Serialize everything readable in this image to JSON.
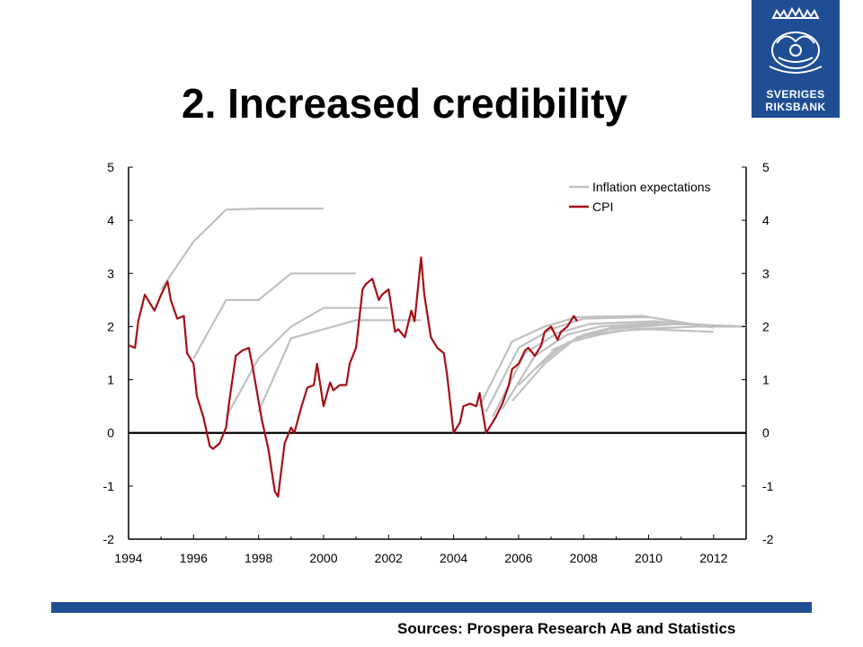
{
  "slide": {
    "title": "2. Increased credibility",
    "source": "Sources: Prospera Research AB and Statistics",
    "logo_line1": "SVERIGES",
    "logo_line2": "RIKSBANK",
    "colors": {
      "brand_blue": "#1f4e95",
      "cpi": "#a50f15",
      "expectations": "#c0c0c0"
    }
  },
  "chart_data": {
    "type": "line",
    "title": "",
    "xlabel": "",
    "ylabel": "",
    "xlim": [
      1994,
      2013
    ],
    "ylim": [
      -2,
      5
    ],
    "x_ticks": [
      "1994",
      "1996",
      "1998",
      "2000",
      "2002",
      "2004",
      "2006",
      "2008",
      "2010",
      "2012"
    ],
    "y_ticks": [
      "5",
      "4",
      "3",
      "2",
      "1",
      "0",
      "-1",
      "-2"
    ],
    "legend": {
      "placement": "top-right",
      "entries": [
        "Inflation expectations",
        "CPI"
      ]
    },
    "cpi": {
      "name": "CPI",
      "x": [
        1994.0,
        1994.2,
        1994.3,
        1994.5,
        1994.6,
        1994.8,
        1995.0,
        1995.2,
        1995.3,
        1995.5,
        1995.7,
        1995.8,
        1996.0,
        1996.1,
        1996.3,
        1996.5,
        1996.6,
        1996.8,
        1997.0,
        1997.1,
        1997.3,
        1997.5,
        1997.7,
        1997.8,
        1998.0,
        1998.1,
        1998.3,
        1998.5,
        1998.6,
        1998.8,
        1999.0,
        1999.1,
        1999.3,
        1999.5,
        1999.7,
        1999.8,
        2000.0,
        2000.2,
        2000.3,
        2000.5,
        2000.7,
        2000.8,
        2001.0,
        2001.2,
        2001.3,
        2001.5,
        2001.7,
        2001.8,
        2002.0,
        2002.2,
        2002.3,
        2002.5,
        2002.7,
        2002.8,
        2003.0,
        2003.1,
        2003.3,
        2003.5,
        2003.7,
        2003.8,
        2004.0,
        2004.2,
        2004.3,
        2004.5,
        2004.7,
        2004.8,
        2005.0,
        2005.2,
        2005.3,
        2005.5,
        2005.7,
        2005.8,
        2006.0,
        2006.2,
        2006.3,
        2006.5,
        2006.7,
        2006.8,
        2007.0,
        2007.2,
        2007.3,
        2007.5,
        2007.7,
        2007.8
      ],
      "values": [
        1.65,
        1.6,
        2.1,
        2.6,
        2.5,
        2.3,
        2.6,
        2.85,
        2.5,
        2.15,
        2.2,
        1.5,
        1.3,
        0.7,
        0.3,
        -0.25,
        -0.3,
        -0.2,
        0.1,
        0.6,
        1.45,
        1.55,
        1.6,
        1.3,
        0.6,
        0.25,
        -0.3,
        -1.1,
        -1.2,
        -0.2,
        0.1,
        0.0,
        0.45,
        0.85,
        0.9,
        1.3,
        0.5,
        0.95,
        0.8,
        0.9,
        0.9,
        1.3,
        1.6,
        2.7,
        2.8,
        2.9,
        2.5,
        2.6,
        2.7,
        1.9,
        1.95,
        1.8,
        2.3,
        2.1,
        3.3,
        2.6,
        1.8,
        1.6,
        1.5,
        1.1,
        0.0,
        0.2,
        0.5,
        0.55,
        0.5,
        0.75,
        0.0,
        0.2,
        0.3,
        0.55,
        0.9,
        1.2,
        1.3,
        1.55,
        1.6,
        1.45,
        1.65,
        1.9,
        2.0,
        1.75,
        1.9,
        2.0,
        2.2,
        2.1
      ]
    },
    "expectations": [
      {
        "x": [
          1995.0,
          1996.0,
          1997.0,
          1998.0,
          2000.0
        ],
        "values": [
          2.7,
          3.6,
          4.2,
          4.22,
          4.22
        ]
      },
      {
        "x": [
          1996.0,
          1997.0,
          1998.0,
          1999.0,
          2001.0
        ],
        "values": [
          1.4,
          2.5,
          2.5,
          3.0,
          3.0
        ]
      },
      {
        "x": [
          1997.0,
          1998.0,
          1999.0,
          2000.0,
          2002.0
        ],
        "values": [
          0.3,
          1.4,
          2.0,
          2.35,
          2.35
        ]
      },
      {
        "x": [
          1998.0,
          1999.0,
          2000.0,
          2001.0,
          2003.0
        ],
        "values": [
          0.4,
          1.78,
          1.95,
          2.12,
          2.12
        ]
      },
      {
        "x": [
          2004.8,
          2005.8,
          2006.8,
          2007.8,
          2009.8,
          2011.8
        ],
        "values": [
          0.5,
          1.72,
          2.0,
          2.18,
          2.2,
          2.0
        ]
      },
      {
        "x": [
          2005.0,
          2006.0,
          2007.0,
          2008.0,
          2010.0,
          2012.0
        ],
        "values": [
          0.4,
          1.6,
          1.95,
          2.15,
          2.18,
          1.98
        ]
      },
      {
        "x": [
          2005.2,
          2006.2,
          2007.2,
          2008.2,
          2010.2,
          2012.2
        ],
        "values": [
          0.3,
          1.5,
          1.88,
          2.05,
          2.1,
          2.0
        ]
      },
      {
        "x": [
          2005.5,
          2006.5,
          2007.5,
          2008.5,
          2010.5,
          2012.5
        ],
        "values": [
          0.45,
          1.45,
          1.85,
          2.0,
          2.08,
          2.0
        ]
      },
      {
        "x": [
          2005.8,
          2006.8,
          2007.8,
          2008.8,
          2010.8,
          2012.8
        ],
        "values": [
          0.6,
          1.3,
          1.8,
          1.95,
          2.05,
          2.0
        ]
      },
      {
        "x": [
          2006.0,
          2007.0,
          2008.0,
          2009.0,
          2011.0,
          2013.0
        ],
        "values": [
          0.9,
          1.5,
          1.85,
          2.0,
          2.05,
          2.0
        ]
      },
      {
        "x": [
          2006.5,
          2007.5,
          2008.5,
          2009.5,
          2011.5,
          2013.0
        ],
        "values": [
          1.2,
          1.7,
          1.85,
          1.95,
          2.0,
          2.0
        ]
      },
      {
        "x": [
          2007.0,
          2008.0,
          2009.0,
          2010.0,
          2012.0
        ],
        "values": [
          1.55,
          1.82,
          1.92,
          1.95,
          1.9
        ]
      }
    ]
  }
}
